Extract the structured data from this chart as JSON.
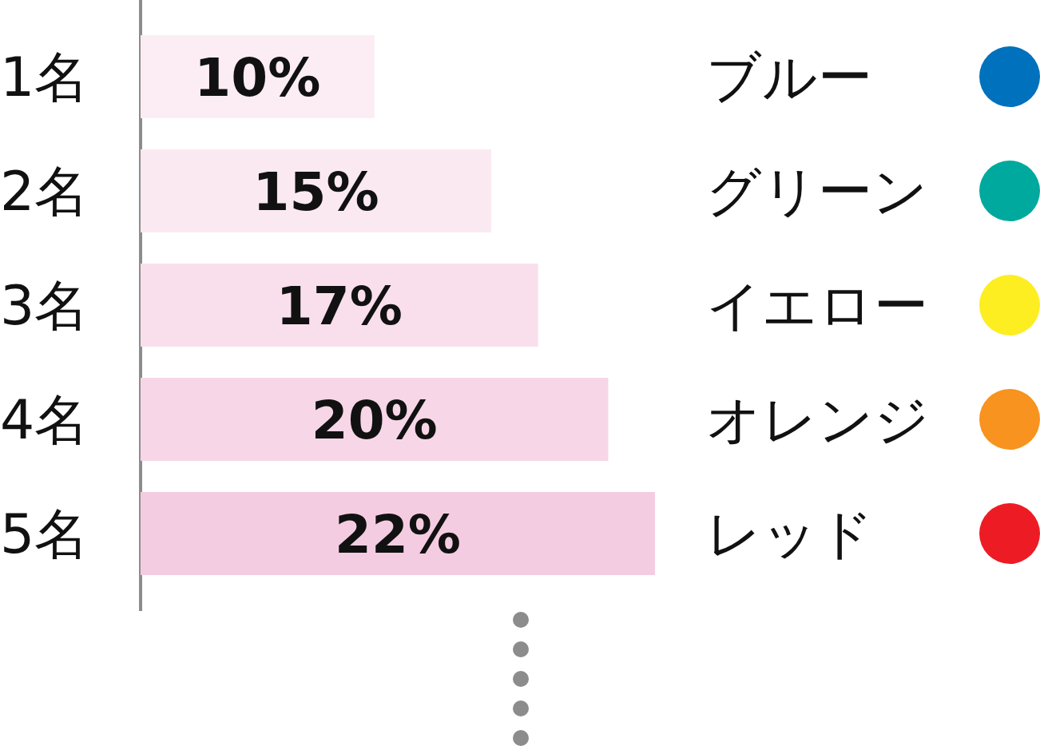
{
  "chart_data": {
    "type": "bar",
    "orientation": "horizontal",
    "categories": [
      "1名",
      "2名",
      "3名",
      "4名",
      "5名"
    ],
    "values": [
      10,
      15,
      17,
      20,
      22
    ],
    "colors": [
      "#fcedf4",
      "#fbe9f1",
      "#f9dfec",
      "#f7d6e7",
      "#f4cce1"
    ],
    "value_labels": [
      "10%",
      "15%",
      "17%",
      "20%",
      "22%"
    ],
    "annotations": [
      "ブルー",
      "グリーン",
      "イエロー",
      "オレンジ",
      "レッド"
    ]
  }
}
